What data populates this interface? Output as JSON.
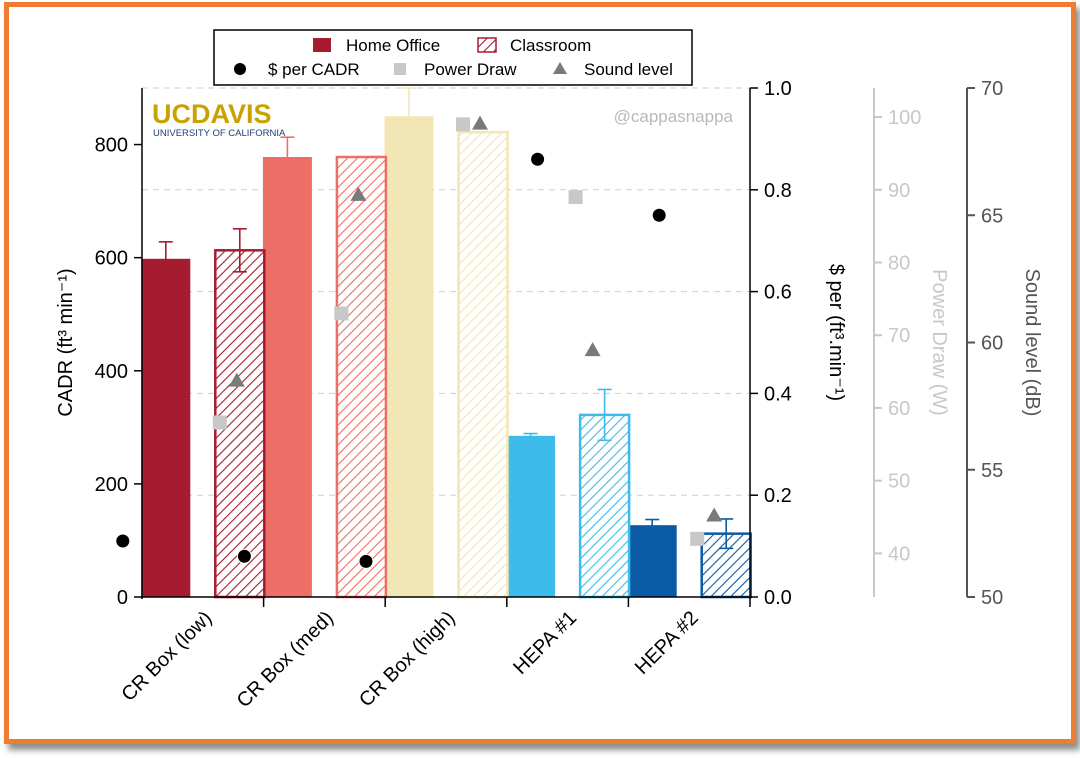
{
  "chart_data": {
    "type": "bar",
    "categories": [
      "CR Box (low)",
      "CR Box (med)",
      "CR Box (high)",
      "HEPA #1",
      "HEPA #2"
    ],
    "series": [
      {
        "name": "Home Office",
        "style": "solid",
        "values": [
          598,
          778,
          850,
          285,
          127
        ],
        "errors": [
          30,
          35,
          50,
          4,
          10
        ]
      },
      {
        "name": "Classroom",
        "style": "hatched",
        "values": [
          613,
          778,
          822,
          322,
          112
        ],
        "errors": [
          38,
          0,
          0,
          45,
          26
        ]
      }
    ],
    "category_colors": [
      "#a51c30",
      "#ec6e66",
      "#f2e6b4",
      "#3dbbea",
      "#0b5aa6"
    ],
    "scatter": [
      {
        "name": "$ per CADR",
        "axis": "right1",
        "marker": "circle",
        "color": "#000000",
        "values": [
          0.11,
          0.08,
          0.07,
          0.86,
          0.75
        ]
      },
      {
        "name": "Power Draw",
        "axis": "right2",
        "marker": "square",
        "color": "#c8c8c8",
        "values": [
          58,
          73,
          99,
          89,
          42
        ]
      },
      {
        "name": "Sound level",
        "axis": "right3",
        "marker": "triangle",
        "color": "#7a7a7a",
        "values": [
          58.5,
          65.8,
          68.6,
          59.7,
          53.2
        ]
      }
    ],
    "axes": {
      "left": {
        "label": "CADR (ft³ min⁻¹)",
        "range": [
          0,
          900
        ],
        "ticks": [
          0,
          200,
          400,
          600,
          800
        ]
      },
      "right1": {
        "label": "$ per (ft³.min⁻¹)",
        "range": [
          0,
          1.0
        ],
        "ticks": [
          "0.0",
          "0.2",
          "0.4",
          "0.6",
          "0.8",
          "1.0"
        ]
      },
      "right2": {
        "label": "Power Draw (W)",
        "range": [
          34,
          104
        ],
        "ticks": [
          40,
          50,
          60,
          70,
          80,
          90,
          100
        ]
      },
      "right3": {
        "label": "Sound level (dB)",
        "range": [
          50,
          70
        ],
        "ticks": [
          50,
          55,
          60,
          65,
          70
        ]
      }
    },
    "grid": "dashed",
    "legend_position": "top-center",
    "watermark": "@cappasnappa",
    "logo": {
      "text_main": "UCDAVIS",
      "text_sub": "UNIVERSITY OF CALIFORNIA"
    }
  },
  "colors": {
    "frame": "#ee7d32",
    "power_axis": "#c8c8c8",
    "sound_axis": "#555555"
  }
}
